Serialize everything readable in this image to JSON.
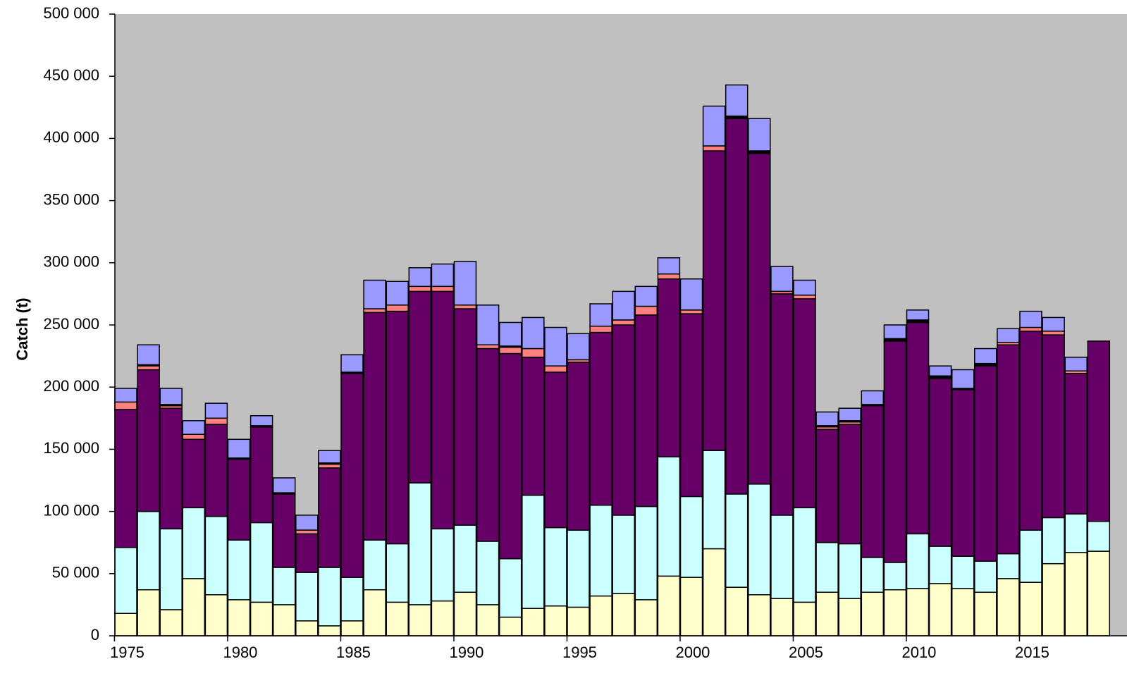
{
  "chart_data": {
    "type": "bar",
    "stacked": true,
    "title": "",
    "xlabel": "",
    "ylabel": "Catch (t)",
    "ylim": [
      0,
      500000
    ],
    "yticks": [
      0,
      50000,
      100000,
      150000,
      200000,
      250000,
      300000,
      350000,
      400000,
      450000,
      500000
    ],
    "ytick_labels": [
      "0",
      "50 000",
      "100 000",
      "150 000",
      "200 000",
      "250 000",
      "300 000",
      "350 000",
      "400 000",
      "450 000",
      "500 000"
    ],
    "x_tick_labels": [
      "1975",
      "1980",
      "1985",
      "1990",
      "1995",
      "2000",
      "2005",
      "2010",
      "2015"
    ],
    "x_tick_years": [
      1975,
      1980,
      1985,
      1990,
      1995,
      2000,
      2005,
      2010,
      2015
    ],
    "grid": false,
    "legend": "none",
    "plot_background": "#c0c0c0",
    "categories": [
      1975,
      1976,
      1977,
      1978,
      1979,
      1980,
      1981,
      1982,
      1983,
      1984,
      1985,
      1986,
      1987,
      1988,
      1989,
      1990,
      1991,
      1992,
      1993,
      1994,
      1995,
      1996,
      1997,
      1998,
      1999,
      2000,
      2001,
      2002,
      2003,
      2004,
      2005,
      2006,
      2007,
      2008,
      2009,
      2010,
      2011,
      2012,
      2013,
      2014,
      2015,
      2016,
      2017,
      2018
    ],
    "series": [
      {
        "color": "#ffffcc",
        "values": [
          18000,
          37000,
          21000,
          46000,
          33000,
          29000,
          27000,
          25000,
          12000,
          8000,
          12000,
          37000,
          27000,
          25000,
          28000,
          35000,
          25000,
          15000,
          22000,
          24000,
          23000,
          32000,
          34000,
          29000,
          48000,
          47000,
          70000,
          39000,
          33000,
          30000,
          27000,
          35000,
          30000,
          35000,
          37000,
          38000,
          42000,
          38000,
          35000,
          46000,
          43000,
          58000,
          67000,
          68000
        ]
      },
      {
        "color": "#ccffff",
        "values": [
          53000,
          63000,
          65000,
          57000,
          63000,
          48000,
          64000,
          30000,
          39000,
          47000,
          35000,
          40000,
          47000,
          98000,
          58000,
          54000,
          51000,
          47000,
          91000,
          63000,
          62000,
          73000,
          63000,
          75000,
          96000,
          65000,
          79000,
          75000,
          89000,
          67000,
          76000,
          40000,
          44000,
          28000,
          22000,
          44000,
          30000,
          26000,
          25000,
          20000,
          42000,
          37000,
          31000,
          24000
        ]
      },
      {
        "color": "#660066",
        "values": [
          111000,
          114000,
          97000,
          55000,
          74000,
          65000,
          77000,
          59000,
          31000,
          80000,
          164000,
          183000,
          187000,
          154000,
          191000,
          174000,
          155000,
          165000,
          111000,
          125000,
          135000,
          139000,
          153000,
          154000,
          143000,
          147000,
          241000,
          302000,
          266000,
          178000,
          168000,
          91000,
          96000,
          122000,
          178000,
          170000,
          135000,
          134000,
          157000,
          168000,
          160000,
          147000,
          113000,
          145000
        ]
      },
      {
        "color": "#ff8080",
        "values": [
          6000,
          3000,
          2000,
          4000,
          5000,
          0,
          0,
          0,
          3000,
          3000,
          0,
          3000,
          5000,
          4000,
          4000,
          3000,
          3000,
          5000,
          7000,
          5000,
          2000,
          5000,
          4000,
          7000,
          4000,
          3000,
          4000,
          0,
          0,
          2000,
          3000,
          2000,
          2000,
          0,
          0,
          0,
          0,
          0,
          0,
          2000,
          3000,
          3000,
          2000,
          0
        ]
      },
      {
        "color": "#000000",
        "values": [
          0,
          1000,
          1000,
          0,
          0,
          1000,
          1000,
          1000,
          0,
          1000,
          1000,
          0,
          0,
          0,
          0,
          0,
          0,
          1000,
          0,
          0,
          0,
          0,
          0,
          0,
          0,
          0,
          0,
          2000,
          2000,
          0,
          0,
          1000,
          1000,
          1000,
          2000,
          2000,
          2000,
          1000,
          2000,
          0,
          0,
          0,
          0,
          0
        ]
      },
      {
        "color": "#9999ff",
        "values": [
          11000,
          16000,
          13000,
          11000,
          12000,
          15000,
          8000,
          12000,
          12000,
          10000,
          14000,
          23000,
          19000,
          15000,
          18000,
          35000,
          32000,
          19000,
          25000,
          31000,
          21000,
          18000,
          23000,
          16000,
          13000,
          25000,
          32000,
          25000,
          26000,
          20000,
          12000,
          11000,
          10000,
          11000,
          11000,
          8000,
          8000,
          15000,
          12000,
          11000,
          13000,
          11000,
          11000,
          0
        ]
      }
    ]
  }
}
